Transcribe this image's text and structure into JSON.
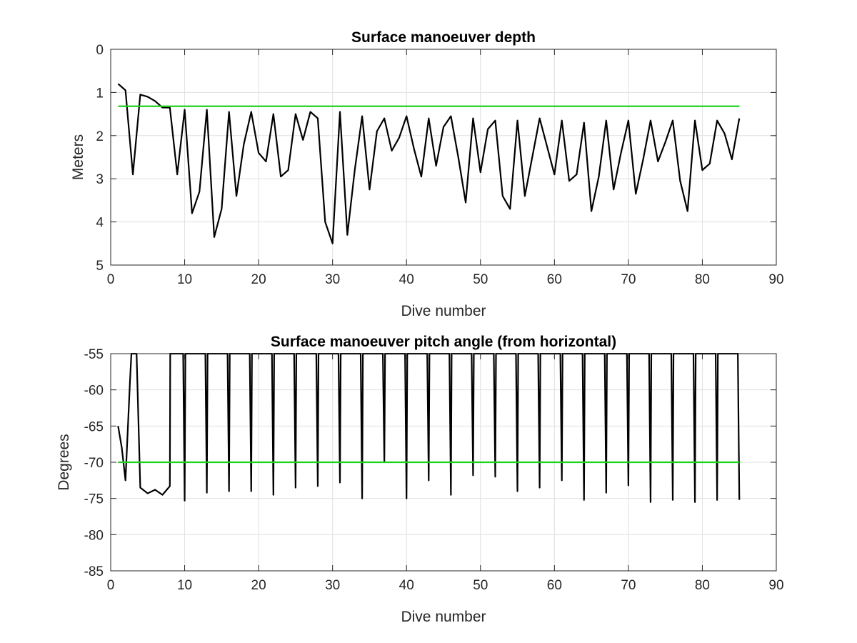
{
  "chart_data": [
    {
      "type": "line",
      "title": "Surface manoeuver depth",
      "xlabel": "Dive number",
      "ylabel": "Meters",
      "xlim": [
        0,
        90
      ],
      "ylim": [
        0,
        5
      ],
      "y_reversed": true,
      "grid": true,
      "xticks": [
        0,
        10,
        20,
        30,
        40,
        50,
        60,
        70,
        80,
        90
      ],
      "xtick_labels": [
        "0",
        "10",
        "20",
        "30",
        "40",
        "50",
        "60",
        "70",
        "80",
        "90"
      ],
      "yticks": [
        0,
        1,
        2,
        3,
        4,
        5
      ],
      "ytick_labels": [
        "0",
        "1",
        "2",
        "3",
        "4",
        "5"
      ],
      "series": [
        {
          "color": "#000000",
          "x": [
            1,
            2,
            3,
            4,
            5,
            6,
            7,
            8,
            9,
            10,
            11,
            12,
            13,
            14,
            15,
            16,
            17,
            18,
            19,
            20,
            21,
            22,
            23,
            24,
            25,
            26,
            27,
            28,
            29,
            30,
            31,
            32,
            33,
            34,
            35,
            36,
            37,
            38,
            39,
            40,
            41,
            42,
            43,
            44,
            45,
            46,
            47,
            48,
            49,
            50,
            51,
            52,
            53,
            54,
            55,
            56,
            57,
            58,
            59,
            60,
            61,
            62,
            63,
            64,
            65,
            66,
            67,
            68,
            69,
            70,
            71,
            72,
            73,
            74,
            75,
            76,
            77,
            78,
            79,
            80,
            81,
            82,
            83,
            84,
            85
          ],
          "y": [
            0.8,
            0.95,
            2.9,
            1.05,
            1.1,
            1.2,
            1.35,
            1.35,
            2.9,
            1.4,
            3.8,
            3.3,
            1.4,
            4.35,
            3.7,
            1.45,
            3.4,
            2.2,
            1.45,
            2.4,
            2.6,
            1.5,
            2.95,
            2.8,
            1.5,
            2.1,
            1.45,
            1.6,
            4.0,
            4.5,
            1.45,
            4.3,
            2.8,
            1.55,
            3.25,
            1.9,
            1.6,
            2.35,
            2.05,
            1.55,
            2.3,
            2.95,
            1.6,
            2.7,
            1.8,
            1.55,
            2.5,
            3.55,
            1.6,
            2.85,
            1.85,
            1.65,
            3.4,
            3.7,
            1.65,
            3.4,
            2.5,
            1.6,
            2.25,
            2.9,
            1.65,
            3.05,
            2.9,
            1.7,
            3.75,
            2.95,
            1.65,
            3.25,
            2.4,
            1.65,
            3.35,
            2.55,
            1.65,
            2.6,
            2.15,
            1.65,
            3.05,
            3.75,
            1.65,
            2.8,
            2.65,
            1.65,
            1.95,
            2.55,
            1.6
          ]
        },
        {
          "color": "#1ed31e",
          "x": [
            1,
            85
          ],
          "y": [
            1.32,
            1.32
          ]
        }
      ]
    },
    {
      "type": "line",
      "title": "Surface manoeuver pitch angle (from horizontal)",
      "xlabel": "Dive number",
      "ylabel": "Degrees",
      "xlim": [
        0,
        90
      ],
      "ylim": [
        -85,
        -55
      ],
      "y_reversed": false,
      "grid": true,
      "xticks": [
        0,
        10,
        20,
        30,
        40,
        50,
        60,
        70,
        80,
        90
      ],
      "xtick_labels": [
        "0",
        "10",
        "20",
        "30",
        "40",
        "50",
        "60",
        "70",
        "80",
        "90"
      ],
      "yticks": [
        -85,
        -80,
        -75,
        -70,
        -65,
        -60,
        -55
      ],
      "ytick_labels": [
        "-85",
        "-80",
        "-75",
        "-70",
        "-65",
        "-60",
        "-55"
      ],
      "series": [
        {
          "color": "#000000",
          "x": [
            1,
            1.5,
            2,
            2.6,
            2.8,
            3,
            3.5,
            4,
            5,
            6,
            7,
            8,
            8.05,
            9,
            9.8,
            10,
            10.1,
            12,
            12.8,
            13,
            13.1,
            15,
            15.8,
            16,
            16.1,
            18,
            18.8,
            19,
            19.1,
            21,
            21.8,
            22,
            22.1,
            24,
            24.8,
            25,
            25.1,
            27,
            27.8,
            28,
            28.1,
            30,
            30.8,
            31,
            31.1,
            33,
            33.8,
            34,
            34.1,
            36,
            36.8,
            37,
            37.1,
            39,
            39.8,
            40,
            40.1,
            42,
            42.8,
            43,
            43.1,
            45,
            45.8,
            46,
            46.1,
            48,
            48.8,
            49,
            49.1,
            51,
            51.8,
            52,
            52.1,
            54,
            54.8,
            55,
            55.1,
            57,
            57.8,
            58,
            58.1,
            60,
            60.8,
            61,
            61.1,
            63,
            63.8,
            64,
            64.1,
            66,
            66.8,
            67,
            67.1,
            69,
            69.8,
            70,
            70.1,
            72,
            72.8,
            73,
            73.1,
            75,
            75.8,
            76,
            76.1,
            78,
            78.8,
            79,
            79.1,
            81,
            81.8,
            82,
            82.1,
            84,
            84.8,
            85
          ],
          "y": [
            -65,
            -68,
            -72.5,
            -59,
            -55,
            -55,
            -55,
            -73.5,
            -74.3,
            -73.8,
            -74.5,
            -73.3,
            -55,
            -55,
            -55,
            -75.3,
            -55,
            -55,
            -55,
            -74.2,
            -55,
            -55,
            -55,
            -74,
            -55,
            -55,
            -55,
            -74,
            -55,
            -55,
            -55,
            -74.5,
            -55,
            -55,
            -55,
            -73.5,
            -55,
            -55,
            -55,
            -73.3,
            -55,
            -55,
            -55,
            -72.8,
            -55,
            -55,
            -55,
            -75,
            -55,
            -55,
            -55,
            -70,
            -55,
            -55,
            -55,
            -75,
            -55,
            -55,
            -55,
            -72.5,
            -55,
            -55,
            -55,
            -74.5,
            -55,
            -55,
            -55,
            -71.8,
            -55,
            -55,
            -55,
            -72,
            -55,
            -55,
            -55,
            -74,
            -55,
            -55,
            -55,
            -73.5,
            -55,
            -55,
            -55,
            -72.5,
            -55,
            -55,
            -55,
            -75.2,
            -55,
            -55,
            -55,
            -74.2,
            -55,
            -55,
            -55,
            -73.2,
            -55,
            -55,
            -55,
            -75.5,
            -55,
            -55,
            -55,
            -75.2,
            -55,
            -55,
            -55,
            -75.5,
            -55,
            -55,
            -55,
            -75.2,
            -55,
            -55,
            -55,
            -75.2
          ]
        },
        {
          "color": "#1ed31e",
          "x": [
            1,
            85
          ],
          "y": [
            -70,
            -70
          ]
        }
      ]
    }
  ]
}
